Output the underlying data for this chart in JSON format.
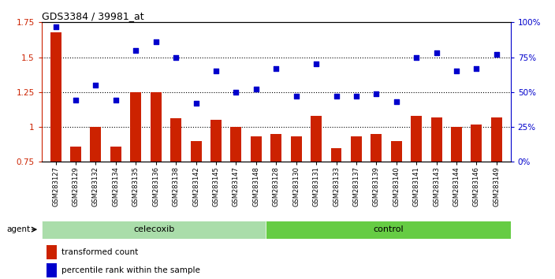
{
  "title": "GDS3384 / 39981_at",
  "samples": [
    "GSM283127",
    "GSM283129",
    "GSM283132",
    "GSM283134",
    "GSM283135",
    "GSM283136",
    "GSM283138",
    "GSM283142",
    "GSM283145",
    "GSM283147",
    "GSM283148",
    "GSM283128",
    "GSM283130",
    "GSM283131",
    "GSM283133",
    "GSM283137",
    "GSM283139",
    "GSM283140",
    "GSM283141",
    "GSM283143",
    "GSM283144",
    "GSM283146",
    "GSM283149"
  ],
  "red_bars": [
    1.68,
    0.86,
    1.0,
    0.86,
    1.25,
    1.25,
    1.06,
    0.9,
    1.05,
    1.0,
    0.93,
    0.95,
    0.93,
    1.08,
    0.85,
    0.93,
    0.95,
    0.9,
    1.08,
    1.07,
    1.0,
    1.02,
    1.07
  ],
  "blue_dots_pct": [
    97,
    44,
    55,
    44,
    80,
    86,
    75,
    42,
    65,
    50,
    52,
    67,
    47,
    70,
    47,
    47,
    49,
    43,
    75,
    78,
    65,
    67,
    77
  ],
  "ylim_left": [
    0.75,
    1.75
  ],
  "ylim_right": [
    0,
    100
  ],
  "yticks_left": [
    0.75,
    1.0,
    1.25,
    1.5,
    1.75
  ],
  "ytick_labels_left": [
    "0.75",
    "1",
    "1.25",
    "1.5",
    "1.75"
  ],
  "yticks_right": [
    0,
    25,
    50,
    75,
    100
  ],
  "ytick_labels_right": [
    "0%",
    "25%",
    "50%",
    "75%",
    "100%"
  ],
  "bar_color": "#cc2200",
  "dot_color": "#0000cc",
  "celecoxib_color": "#aaddaa",
  "control_color": "#66cc44",
  "xlabel_bg_color": "#cccccc",
  "n_celecoxib": 11,
  "n_control": 12
}
